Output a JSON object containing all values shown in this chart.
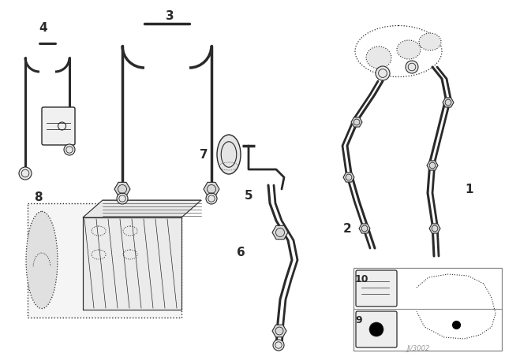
{
  "background_color": "#ffffff",
  "line_color": "#2a2a2a",
  "fig_width": 6.4,
  "fig_height": 4.48,
  "dpi": 100,
  "watermark": "JJ/3002"
}
